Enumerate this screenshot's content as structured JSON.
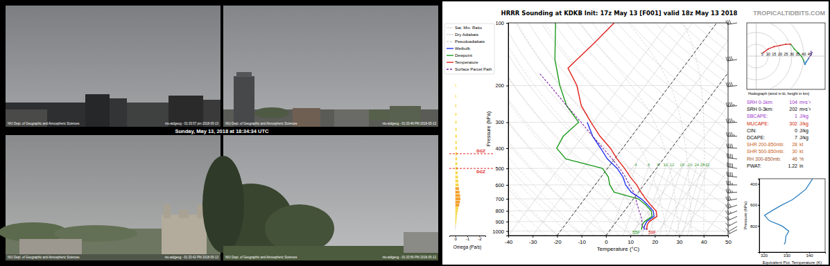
{
  "photos": {
    "caption": "Sunday, May 13, 2018 at 18:34:34 UTC",
    "cameras": [
      {
        "credit": "NIU Dept. of Geographic and Atmospheric Sciences",
        "stamp": "niu-atdgeog - 01:33:57 pm 2018-05-13"
      },
      {
        "credit": "NIU Dept. of Geographic and Atmospheric Sciences",
        "stamp": "niu-atdgeog - 01:33:46 PM 2018-05-13"
      },
      {
        "credit": "NIU Dept. of Geographic and Atmospheric Sciences",
        "stamp": "niu-atdgeog - 01:33:42 PM 2018-05-13"
      },
      {
        "credit": "NIU Dept. of Geographic and Atmospheric Sciences",
        "stamp": "niu-atdgeog - 01:33:56 PM 2018-05-13"
      }
    ]
  },
  "chart_data": [
    {
      "type": "skew-t",
      "title": "HRRR Sounding at KDKB Init: 17z May 13 [F001] valid 18z May 13 2018",
      "source": "TROPICALTIDBITS.COM",
      "xlabel": "Temperature (°C)",
      "ylabel": "Pressure (hPa)",
      "xlim": [
        -40,
        50
      ],
      "ylim": [
        1050,
        100
      ],
      "xticks": [
        -40,
        -30,
        -20,
        -10,
        0,
        10,
        20,
        30,
        40,
        50
      ],
      "yticks": [
        100,
        200,
        300,
        400,
        500,
        600,
        700,
        800,
        900,
        1000
      ],
      "log": "y",
      "grid": true,
      "legend": "left",
      "dashed_isotherms": [
        -20,
        0
      ],
      "mixing_ratios": [
        4,
        6,
        8,
        10,
        12,
        16,
        20,
        24,
        28,
        32
      ],
      "reference_lines": [
        {
          "name": "Sat. Mix. Ratio",
          "type": "mixing_ratio",
          "color": "#8c8c8c",
          "line_style": "dotted"
        },
        {
          "name": "Dry Adiabats",
          "type": "dry_adiabat",
          "color": "#c4c4c4",
          "line_style": "solid"
        },
        {
          "name": "Pseudoadiabats",
          "type": "moist_adiabat",
          "color": "#b4b4b4",
          "line_style": "dashed"
        }
      ],
      "series": [
        {
          "name": "Wetbulb",
          "color": "#2233ee",
          "line_style": "solid",
          "x": [
            13.8,
            12.9,
            12.4,
            13.8,
            11.8,
            7.8,
            3.2,
            -3,
            -7.5,
            -11,
            -16,
            -23,
            -29,
            -36,
            -42.5
          ],
          "y": [
            985,
            950,
            900,
            850,
            800,
            750,
            700,
            650,
            600,
            550,
            500,
            450,
            400,
            350,
            300
          ]
        },
        {
          "name": "Dewpoint",
          "color": "#1e9a1e",
          "line_style": "solid",
          "surface_label": "55F",
          "x": [
            12.8,
            12,
            11.5,
            11.5,
            13,
            11,
            7,
            2,
            -10,
            -14,
            -17,
            -22,
            -40,
            -47,
            -48,
            -46,
            -56,
            -65,
            -75,
            -86
          ],
          "y": [
            985,
            950,
            925,
            900,
            850,
            800,
            750,
            700,
            650,
            600,
            550,
            500,
            450,
            400,
            350,
            300,
            250,
            200,
            150,
            100
          ]
        },
        {
          "name": "Temperature",
          "color": "#e0201a",
          "line_style": "solid",
          "surface_label": "59F",
          "x": [
            15,
            14,
            13.5,
            13.5,
            15,
            13,
            9,
            5,
            1,
            -3,
            -8,
            -13,
            -19,
            -25,
            -33,
            -41,
            -50,
            -58,
            -67,
            -66,
            -64,
            -62
          ],
          "y": [
            985,
            950,
            925,
            900,
            850,
            800,
            750,
            700,
            650,
            600,
            550,
            500,
            450,
            400,
            350,
            300,
            250,
            200,
            165,
            150,
            125,
            100
          ]
        },
        {
          "name": "Surface Parcel Path",
          "color": "#7a1fa0",
          "line_style": "dashed",
          "x": [
            15,
            12,
            10.5,
            8.5,
            6,
            3.5,
            1,
            -2,
            -6,
            -10,
            -15,
            -21,
            -28,
            -36,
            -45,
            -56,
            -69,
            -77
          ],
          "y": [
            985,
            950,
            900,
            850,
            800,
            750,
            700,
            650,
            600,
            550,
            500,
            450,
            400,
            350,
            300,
            250,
            200,
            175
          ]
        }
      ],
      "winds": {
        "pressure": [
          985,
          950,
          900,
          850,
          800,
          750,
          700,
          650,
          600,
          550,
          500,
          450,
          400,
          350,
          300,
          250,
          200,
          150,
          100
        ],
        "u": [
          6,
          10,
          15,
          20,
          25,
          29,
          32,
          35,
          38,
          40,
          41,
          42,
          44,
          46,
          47,
          46,
          44,
          40,
          30
        ],
        "v": [
          3,
          6,
          8,
          9,
          10,
          10,
          6,
          3,
          0,
          -4,
          -7,
          -5,
          -2,
          1,
          3,
          4,
          5,
          6,
          5
        ]
      }
    },
    {
      "type": "hodograph",
      "title": "Hodograph (wind in kt, height in km)",
      "xlim": [
        -8,
        58
      ],
      "ylim": [
        -28,
        28
      ],
      "xticks": [
        5,
        10,
        15,
        20,
        25,
        30,
        35,
        40,
        45
      ],
      "top_pressure": 250,
      "colors": [
        "#d62728",
        "#d62728",
        "#d62728",
        "#d62728",
        "#d62728",
        "#d62728",
        "#2ca02c",
        "#2ca02c",
        "#2ca02c",
        "#2ca02c",
        "#1f77b4",
        "#1f77b4",
        "#1f77b4",
        "#9467bd",
        "#9467bd",
        "#9467bd"
      ]
    },
    {
      "type": "line",
      "xlabel": "Equivalent Pot. Temperature (K)",
      "ylabel": "Pressure (hPa)",
      "xlim": [
        318,
        347
      ],
      "ylim": [
        1050,
        350
      ],
      "xticks": [
        320,
        330,
        340
      ],
      "yticks": [
        400,
        600,
        800
      ],
      "color": "#2a7fc0",
      "x": [
        329,
        329.5,
        329.7,
        331,
        328,
        322.4,
        320.3,
        324,
        328,
        332.6,
        335.6,
        338.5,
        340,
        341.5
      ],
      "y": [
        975,
        950,
        900,
        850,
        800,
        750,
        700,
        650,
        600,
        550,
        500,
        450,
        400,
        350
      ]
    },
    {
      "type": "bar",
      "orientation": "horizontal",
      "xlabel": "Omega (Pa/s)",
      "xlim": [
        0.5,
        -2.5
      ],
      "xticks": [
        0,
        -1,
        -2
      ],
      "ylim": [
        1050,
        100
      ],
      "log": "y",
      "y": [
        975,
        950,
        925,
        900,
        875,
        850,
        825,
        800,
        775,
        750,
        725,
        700,
        675,
        650,
        625,
        600,
        575,
        550,
        525,
        500,
        475,
        450,
        425,
        400,
        375,
        350,
        325,
        300,
        275,
        250,
        225,
        200
      ],
      "values": [
        -0.02,
        -0.03,
        -0.05,
        -0.08,
        -0.1,
        -0.12,
        -0.15,
        -0.2,
        -0.25,
        -0.32,
        -0.38,
        -0.42,
        -0.4,
        -0.35,
        -0.3,
        -0.28,
        -0.25,
        -0.22,
        -0.2,
        -0.18,
        -0.16,
        -0.15,
        -0.14,
        -0.13,
        -0.12,
        -0.12,
        -0.11,
        -0.1,
        -0.09,
        -0.08,
        -0.06,
        -0.05
      ],
      "dgz": [
        {
          "pressure": 425,
          "label": "DGZ"
        },
        {
          "pressure": 500,
          "label": "DGZ"
        }
      ]
    }
  ],
  "sounding_stats": [
    {
      "label": "SRH 0-1km:",
      "value": 104,
      "unit": "m²s⁻²",
      "color": "#9b30c8"
    },
    {
      "label": "SRH 0-3km:",
      "value": 202,
      "unit": "m²s⁻²",
      "color": "#000000"
    },
    {
      "label": "SBCAPE:",
      "value": 1,
      "unit": "J/kg",
      "color": "#9b30c8"
    },
    {
      "label": "MUCAPE:",
      "value": 302,
      "unit": "J/kg",
      "color": "#cc2200"
    },
    {
      "label": "CIN:",
      "value": 0,
      "unit": "J/kg",
      "color": "#000000"
    },
    {
      "label": "DCAPE:",
      "value": 7,
      "unit": "J/kg",
      "color": "#000000"
    },
    {
      "label": "SHR 200-850mb:",
      "value": 28,
      "unit": "kt",
      "color": "#c8621e"
    },
    {
      "label": "SHR 500-850mb:",
      "value": 30,
      "unit": "kt",
      "color": "#c8621e"
    },
    {
      "label": "RH 300-850mb:",
      "value": 46,
      "unit": "%",
      "color": "#a0522d"
    },
    {
      "label": "PWAT:",
      "value": 1.22,
      "unit": "in",
      "color": "#000000"
    }
  ]
}
